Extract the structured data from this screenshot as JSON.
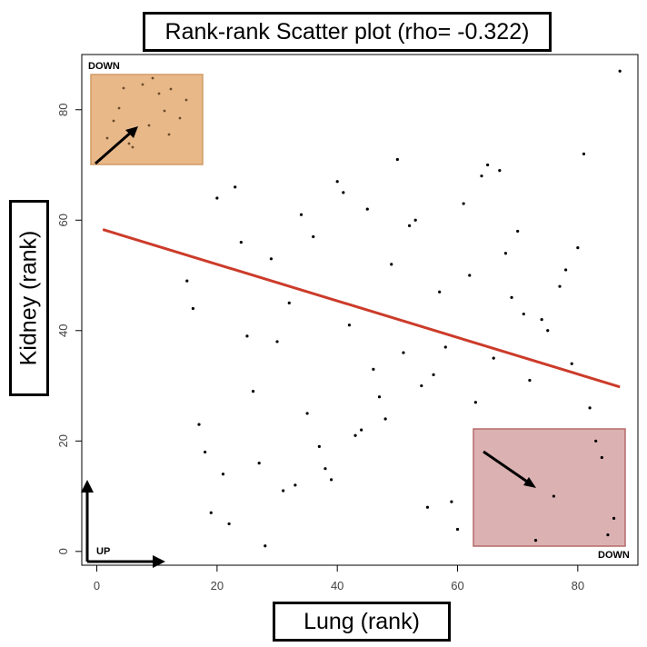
{
  "chart_data": {
    "type": "scatter",
    "title": "Rank-rank Scatter plot (rho= -0.322)",
    "xlabel": "Lung (rank)",
    "ylabel": "Kidney (rank)",
    "xlim": [
      -2.5,
      90
    ],
    "ylim": [
      -2.5,
      90
    ],
    "xticks": [
      0,
      20,
      40,
      60,
      80
    ],
    "yticks": [
      0,
      20,
      40,
      60,
      80
    ],
    "grid": false,
    "points": [
      [
        15,
        49
      ],
      [
        16,
        44
      ],
      [
        17,
        23
      ],
      [
        18,
        18
      ],
      [
        19,
        7
      ],
      [
        20,
        64
      ],
      [
        21,
        14
      ],
      [
        22,
        5
      ],
      [
        23,
        66
      ],
      [
        24,
        56
      ],
      [
        25,
        39
      ],
      [
        26,
        29
      ],
      [
        27,
        16
      ],
      [
        28,
        1
      ],
      [
        29,
        53
      ],
      [
        30,
        38
      ],
      [
        31,
        11
      ],
      [
        32,
        45
      ],
      [
        33,
        12
      ],
      [
        34,
        61
      ],
      [
        35,
        25
      ],
      [
        36,
        57
      ],
      [
        37,
        19
      ],
      [
        38,
        15
      ],
      [
        39,
        13
      ],
      [
        40,
        67
      ],
      [
        41,
        65
      ],
      [
        42,
        41
      ],
      [
        43,
        21
      ],
      [
        44,
        22
      ],
      [
        45,
        62
      ],
      [
        46,
        33
      ],
      [
        47,
        28
      ],
      [
        48,
        24
      ],
      [
        49,
        52
      ],
      [
        50,
        71
      ],
      [
        51,
        36
      ],
      [
        52,
        59
      ],
      [
        53,
        60
      ],
      [
        54,
        30
      ],
      [
        55,
        8
      ],
      [
        56,
        32
      ],
      [
        57,
        47
      ],
      [
        58,
        37
      ],
      [
        59,
        9
      ],
      [
        60,
        4
      ],
      [
        61,
        63
      ],
      [
        62,
        50
      ],
      [
        63,
        27
      ],
      [
        64,
        68
      ],
      [
        65,
        70
      ],
      [
        66,
        35
      ],
      [
        67,
        69
      ],
      [
        68,
        54
      ],
      [
        69,
        46
      ],
      [
        70,
        58
      ],
      [
        71,
        43
      ],
      [
        72,
        31
      ],
      [
        73,
        2
      ],
      [
        74,
        42
      ],
      [
        75,
        40
      ],
      [
        76,
        10
      ],
      [
        77,
        48
      ],
      [
        78,
        51
      ],
      [
        79,
        34
      ],
      [
        80,
        55
      ],
      [
        81,
        72
      ],
      [
        82,
        26
      ],
      [
        83,
        20
      ],
      [
        84,
        17
      ],
      [
        85,
        3
      ],
      [
        86,
        6
      ],
      [
        87,
        87
      ]
    ],
    "fit_line": {
      "x": [
        1,
        87
      ],
      "y": [
        58.3,
        29.8
      ],
      "color": "#cc3b2a"
    },
    "point_color": "#000000",
    "annotations": {
      "down_box": {
        "label": "DOWN",
        "fill": "#e8b889",
        "border": "#d19a64",
        "corner": "top-left"
      },
      "up_box": {
        "label": "DOWN",
        "fill": "#dcb1b1",
        "border": "#b56a6a",
        "corner": "bottom-right"
      },
      "origin_label": "UP"
    }
  }
}
